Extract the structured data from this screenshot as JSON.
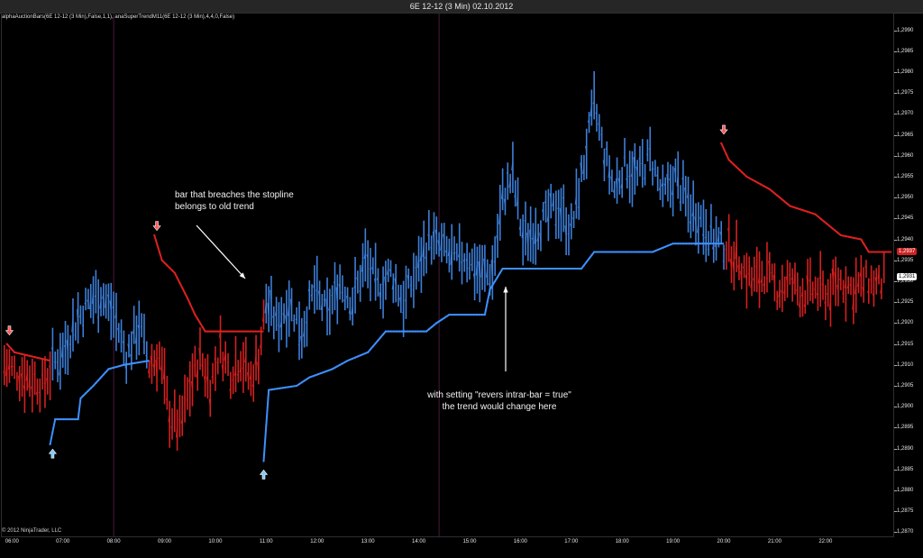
{
  "window": {
    "title": "6E 12-12 (3 Min)  02.10.2012"
  },
  "indicator_label": "alphaAuctionBars(6E 12-12 (3 Min),False,1,1), anaSuperTrendM11(6E 12-12 (3 Min),4,4,0,False)",
  "copyright": "© 2012 NinjaTrader, LLC",
  "colors": {
    "up": "#3d7fd9",
    "down": "#d42020",
    "stop_up": "#3d90ff",
    "stop_down": "#dd2020",
    "background": "#000000"
  },
  "price_badges": [
    {
      "value": 1.2937,
      "label": "1,2937",
      "bg": "#cc2222",
      "fg": "#ffffff"
    },
    {
      "value": 1.2931,
      "label": "1,2931",
      "bg": "#ffffff",
      "fg": "#000000"
    }
  ],
  "annotations": {
    "stopline_note": [
      "bar that breaches the stopline",
      "belongs to old trend"
    ],
    "setting_note": [
      "with setting \"revers intrar-bar = true\"",
      "the trend would change here"
    ]
  },
  "chart_data": {
    "type": "bar",
    "subtype": "ohlc-range-bars-with-supertrend-stopline",
    "title": "6E 12-12 (3 Min)  02.10.2012",
    "ylim": [
      1.2869,
      1.2994
    ],
    "y_ticks": [
      "1,2990",
      "1,2985",
      "1,2980",
      "1,2975",
      "1,2970",
      "1,2965",
      "1,2960",
      "1,2955",
      "1,2950",
      "1,2945",
      "1,2940",
      "1,2935",
      "1,2930",
      "1,2925",
      "1,2920",
      "1,2915",
      "1,2910",
      "1,2905",
      "1,2900",
      "1,2895",
      "1,2890",
      "1,2885",
      "1,2880",
      "1,2875",
      "1,2870"
    ],
    "y_tick_values": [
      1.299,
      1.2985,
      1.298,
      1.2975,
      1.297,
      1.2965,
      1.296,
      1.2955,
      1.295,
      1.2945,
      1.294,
      1.2935,
      1.293,
      1.2925,
      1.292,
      1.2915,
      1.291,
      1.2905,
      1.29,
      1.2895,
      1.289,
      1.2885,
      1.288,
      1.2875,
      1.287
    ],
    "x_ticks": [
      "06:00",
      "07:00",
      "08:00",
      "09:00",
      "10:00",
      "11:00",
      "12:00",
      "13:00",
      "14:00",
      "15:00",
      "16:00",
      "17:00",
      "18:00",
      "19:00",
      "20:00",
      "21:00",
      "22:00"
    ],
    "x_tick_hours": [
      6,
      7,
      8,
      9,
      10,
      11,
      12,
      13,
      14,
      15,
      16,
      17,
      18,
      19,
      20,
      21,
      22
    ],
    "x_range_hours": [
      5.8,
      23.35
    ],
    "session_dividers_hours": [
      8.0,
      14.4
    ],
    "price_path": [
      [
        5.85,
        1.291,
        "down"
      ],
      [
        6.1,
        1.2908,
        "down"
      ],
      [
        6.35,
        1.2907,
        "down"
      ],
      [
        6.6,
        1.2905,
        "down"
      ],
      [
        6.8,
        1.291,
        "up"
      ],
      [
        7.0,
        1.2913,
        "up"
      ],
      [
        7.25,
        1.292,
        "up"
      ],
      [
        7.5,
        1.2925,
        "up"
      ],
      [
        7.75,
        1.2927,
        "up"
      ],
      [
        8.0,
        1.2922,
        "up"
      ],
      [
        8.25,
        1.2912,
        "up"
      ],
      [
        8.5,
        1.292,
        "up"
      ],
      [
        8.7,
        1.291,
        "down"
      ],
      [
        8.9,
        1.2912,
        "down"
      ],
      [
        9.1,
        1.2898,
        "down"
      ],
      [
        9.3,
        1.2895,
        "down"
      ],
      [
        9.5,
        1.2905,
        "down"
      ],
      [
        9.7,
        1.2912,
        "down"
      ],
      [
        9.9,
        1.2905,
        "down"
      ],
      [
        10.1,
        1.2914,
        "down"
      ],
      [
        10.3,
        1.2908,
        "down"
      ],
      [
        10.5,
        1.2912,
        "down"
      ],
      [
        10.7,
        1.2906,
        "down"
      ],
      [
        10.85,
        1.2912,
        "down"
      ],
      [
        11.0,
        1.2925,
        "up"
      ],
      [
        11.2,
        1.292,
        "up"
      ],
      [
        11.45,
        1.2925,
        "up"
      ],
      [
        11.7,
        1.2918,
        "up"
      ],
      [
        11.95,
        1.2928,
        "up"
      ],
      [
        12.2,
        1.2922,
        "up"
      ],
      [
        12.45,
        1.293,
        "up"
      ],
      [
        12.7,
        1.2925,
        "up"
      ],
      [
        12.95,
        1.2935,
        "up"
      ],
      [
        13.2,
        1.2928,
        "up"
      ],
      [
        13.45,
        1.2932,
        "up"
      ],
      [
        13.7,
        1.2925,
        "up"
      ],
      [
        13.95,
        1.2932,
        "up"
      ],
      [
        14.2,
        1.294,
        "up"
      ],
      [
        14.45,
        1.2938,
        "up"
      ],
      [
        14.7,
        1.2935,
        "up"
      ],
      [
        14.95,
        1.2936,
        "up"
      ],
      [
        15.2,
        1.2932,
        "up"
      ],
      [
        15.45,
        1.2932,
        "up"
      ],
      [
        15.65,
        1.295,
        "up"
      ],
      [
        15.85,
        1.2955,
        "up"
      ],
      [
        16.05,
        1.294,
        "up"
      ],
      [
        16.25,
        1.2942,
        "up"
      ],
      [
        16.5,
        1.2945,
        "up"
      ],
      [
        16.75,
        1.2948,
        "up"
      ],
      [
        17.0,
        1.2942,
        "up"
      ],
      [
        17.2,
        1.2955,
        "up"
      ],
      [
        17.45,
        1.2972,
        "up"
      ],
      [
        17.65,
        1.296,
        "up"
      ],
      [
        17.85,
        1.2952,
        "up"
      ],
      [
        18.05,
        1.2958,
        "up"
      ],
      [
        18.3,
        1.2955,
        "up"
      ],
      [
        18.55,
        1.296,
        "up"
      ],
      [
        18.8,
        1.295,
        "up"
      ],
      [
        19.05,
        1.2955,
        "up"
      ],
      [
        19.3,
        1.2948,
        "up"
      ],
      [
        19.55,
        1.2945,
        "up"
      ],
      [
        19.8,
        1.294,
        "up"
      ],
      [
        20.05,
        1.2938,
        "down"
      ],
      [
        20.3,
        1.2935,
        "down"
      ],
      [
        20.55,
        1.293,
        "down"
      ],
      [
        20.8,
        1.2932,
        "down"
      ],
      [
        21.05,
        1.2928,
        "down"
      ],
      [
        21.3,
        1.293,
        "down"
      ],
      [
        21.55,
        1.2927,
        "down"
      ],
      [
        21.8,
        1.2928,
        "down"
      ],
      [
        22.05,
        1.2927,
        "down"
      ],
      [
        22.3,
        1.293,
        "down"
      ],
      [
        22.55,
        1.2928,
        "down"
      ],
      [
        22.8,
        1.293,
        "down"
      ],
      [
        23.05,
        1.2929,
        "down"
      ],
      [
        23.2,
        1.2931,
        "down"
      ]
    ],
    "stopline_up": [
      [
        6.75,
        1.2891
      ],
      [
        6.85,
        1.2897
      ],
      [
        7.3,
        1.2897
      ],
      [
        7.35,
        1.2902
      ],
      [
        7.6,
        1.2905
      ],
      [
        7.9,
        1.2909
      ],
      [
        8.2,
        1.291
      ],
      [
        8.7,
        1.2911
      ],
      [
        10.95,
        1.2887
      ],
      [
        11.05,
        1.2904
      ],
      [
        11.6,
        1.2905
      ],
      [
        11.85,
        1.2907
      ],
      [
        12.3,
        1.2909
      ],
      [
        12.6,
        1.2911
      ],
      [
        13.0,
        1.2913
      ],
      [
        13.35,
        1.2918
      ],
      [
        14.15,
        1.2918
      ],
      [
        14.35,
        1.292
      ],
      [
        14.6,
        1.2922
      ],
      [
        15.3,
        1.2922
      ],
      [
        15.4,
        1.2928
      ],
      [
        15.65,
        1.2933
      ],
      [
        16.7,
        1.2933
      ],
      [
        17.2,
        1.2933
      ],
      [
        17.45,
        1.2937
      ],
      [
        18.6,
        1.2937
      ],
      [
        19.0,
        1.2939
      ],
      [
        20.0,
        1.2939
      ]
    ],
    "stopline_down": [
      [
        5.9,
        1.2915
      ],
      [
        6.05,
        1.2913
      ],
      [
        6.4,
        1.2912
      ],
      [
        6.75,
        1.2911
      ],
      [
        8.8,
        1.2941
      ],
      [
        8.95,
        1.2935
      ],
      [
        9.2,
        1.2932
      ],
      [
        9.45,
        1.2926
      ],
      [
        9.6,
        1.2922
      ],
      [
        9.8,
        1.2918
      ],
      [
        10.95,
        1.2918
      ],
      [
        19.95,
        1.2963
      ],
      [
        20.1,
        1.2959
      ],
      [
        20.45,
        1.2955
      ],
      [
        20.9,
        1.2952
      ],
      [
        21.3,
        1.2948
      ],
      [
        21.8,
        1.2946
      ],
      [
        22.3,
        1.2941
      ],
      [
        22.7,
        1.294
      ],
      [
        22.85,
        1.2937
      ],
      [
        23.3,
        1.2937
      ]
    ],
    "signal_arrows": [
      {
        "hour": 5.95,
        "price": 1.2918,
        "dir": "down"
      },
      {
        "hour": 6.8,
        "price": 1.2889,
        "dir": "up"
      },
      {
        "hour": 8.85,
        "price": 1.2943,
        "dir": "down"
      },
      {
        "hour": 10.95,
        "price": 1.2884,
        "dir": "up"
      },
      {
        "hour": 20.0,
        "price": 1.2966,
        "dir": "down"
      }
    ]
  }
}
